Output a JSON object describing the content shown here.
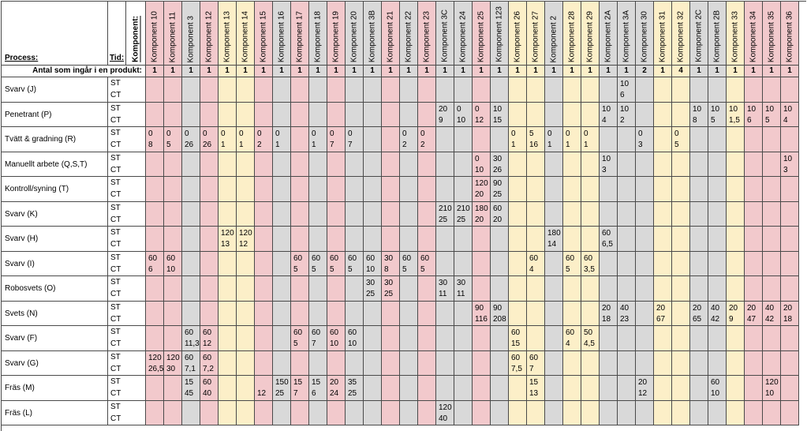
{
  "headers": {
    "process": "Process:",
    "tid": "Tid:",
    "komponent": "Komponent:",
    "antal": "Antal som ingår i en produkt:"
  },
  "st_label": "ST",
  "ct_label": "CT",
  "colors": {
    "pink": "#f2c9cc",
    "yellow": "#fcefc8",
    "gray": "#d9d9d9",
    "white": "#ffffff"
  },
  "components": [
    {
      "name": "Komponent 10",
      "count": "1",
      "color": "pink"
    },
    {
      "name": "Komponent 11",
      "count": "1",
      "color": "pink"
    },
    {
      "name": "Komponent 3",
      "count": "1",
      "color": "gray"
    },
    {
      "name": "Komponent 12",
      "count": "1",
      "color": "pink"
    },
    {
      "name": "Komponent 13",
      "count": "1",
      "color": "yellow"
    },
    {
      "name": "Komponent 14",
      "count": "1",
      "color": "yellow"
    },
    {
      "name": "Komponent 15",
      "count": "1",
      "color": "pink"
    },
    {
      "name": "Komponent 16",
      "count": "1",
      "color": "gray"
    },
    {
      "name": "Komponent 17",
      "count": "1",
      "color": "pink"
    },
    {
      "name": "Komponent 18",
      "count": "1",
      "color": "gray"
    },
    {
      "name": "Komponent 19",
      "count": "1",
      "color": "pink"
    },
    {
      "name": "Komponent 20",
      "count": "1",
      "color": "gray"
    },
    {
      "name": "Komponent 3B",
      "count": "1",
      "color": "gray"
    },
    {
      "name": "Komponent 21",
      "count": "1",
      "color": "pink"
    },
    {
      "name": "Komponent 22",
      "count": "1",
      "color": "gray"
    },
    {
      "name": "Komponent 23",
      "count": "1",
      "color": "pink"
    },
    {
      "name": "Komponent 3C",
      "count": "1",
      "color": "gray"
    },
    {
      "name": "Komponent 24",
      "count": "1",
      "color": "gray"
    },
    {
      "name": "Komponent 25",
      "count": "1",
      "color": "pink"
    },
    {
      "name": "Komponent 123",
      "count": "1",
      "color": "gray"
    },
    {
      "name": "Komponent 26",
      "count": "1",
      "color": "yellow"
    },
    {
      "name": "Komponent 27",
      "count": "1",
      "color": "yellow"
    },
    {
      "name": "Komponent 2",
      "count": "1",
      "color": "gray"
    },
    {
      "name": "Komponent 28",
      "count": "1",
      "color": "yellow"
    },
    {
      "name": "Komponent 29",
      "count": "1",
      "color": "yellow"
    },
    {
      "name": "Komponent 2A",
      "count": "1",
      "color": "gray"
    },
    {
      "name": "Komponent 3A",
      "count": "1",
      "color": "gray"
    },
    {
      "name": "Komponent 30",
      "count": "2",
      "color": "gray"
    },
    {
      "name": "Komponent 31",
      "count": "1",
      "color": "yellow"
    },
    {
      "name": "Komponent 32",
      "count": "4",
      "color": "yellow"
    },
    {
      "name": "Komponent 2C",
      "count": "1",
      "color": "gray"
    },
    {
      "name": "Komponent 2B",
      "count": "1",
      "color": "gray"
    },
    {
      "name": "Komponent 33",
      "count": "1",
      "color": "yellow"
    },
    {
      "name": "Komponent 34",
      "count": "1",
      "color": "pink"
    },
    {
      "name": "Komponent 35",
      "count": "1",
      "color": "pink"
    },
    {
      "name": "Komponent 36",
      "count": "1",
      "color": "pink"
    }
  ],
  "processes": [
    {
      "name": "Svarv (J)",
      "st": {
        "26": "10"
      },
      "ct": {
        "26": "6"
      }
    },
    {
      "name": "Penetrant (P)",
      "st": {
        "16": "20",
        "17": "0",
        "18": "0",
        "19": "10",
        "25": "10",
        "26": "10",
        "30": "10",
        "31": "10",
        "32": "10",
        "33": "10",
        "34": "10",
        "35": "10"
      },
      "ct": {
        "16": "9",
        "17": "10",
        "18": "12",
        "19": "15",
        "25": "4",
        "26": "2",
        "30": "8",
        "31": "5",
        "32": "1,5",
        "33": "6",
        "34": "5",
        "35": "4"
      }
    },
    {
      "name": "Tvätt & gradning (R)",
      "st": {
        "0": "0",
        "1": "0",
        "2": "0",
        "3": "0",
        "4": "0",
        "5": "0",
        "6": "0",
        "7": "0",
        "9": "0",
        "10": "0",
        "11": "0",
        "14": "0",
        "15": "0",
        "20": "0",
        "21": "5",
        "22": "0",
        "23": "0",
        "24": "0",
        "27": "0",
        "29": "0"
      },
      "ct": {
        "0": "8",
        "1": "5",
        "2": "26",
        "3": "26",
        "4": "1",
        "5": "1",
        "6": "2",
        "7": "1",
        "9": "1",
        "10": "7",
        "11": "7",
        "14": "2",
        "15": "2",
        "20": "1",
        "21": "16",
        "22": "1",
        "23": "1",
        "24": "1",
        "27": "3",
        "29": "5"
      }
    },
    {
      "name": "Manuellt arbete (Q,S,T)",
      "st": {
        "18": "0",
        "19": "30",
        "25": "10",
        "35": "10"
      },
      "ct": {
        "18": "10",
        "19": "26",
        "25": "3",
        "35": "3"
      }
    },
    {
      "name": "Kontroll/syning (T)",
      "st": {
        "18": "120",
        "19": "90"
      },
      "ct": {
        "18": "20",
        "19": "25"
      }
    },
    {
      "name": "Svarv (K)",
      "st": {
        "16": "210",
        "17": "210",
        "18": "180",
        "19": "60"
      },
      "ct": {
        "16": "25",
        "17": "25",
        "18": "20",
        "19": "20"
      }
    },
    {
      "name": "Svarv (H)",
      "st": {
        "4": "120",
        "5": "120",
        "22": "180",
        "25": "60"
      },
      "ct": {
        "4": "13",
        "5": "12",
        "22": "14",
        "25": "6,5"
      }
    },
    {
      "name": "Svarv (I)",
      "st": {
        "0": "60",
        "1": "60",
        "8": "60",
        "9": "60",
        "10": "60",
        "11": "60",
        "12": "60",
        "13": "30",
        "14": "60",
        "15": "60",
        "21": "60",
        "23": "60",
        "24": "60"
      },
      "ct": {
        "0": "6",
        "1": "10",
        "8": "5",
        "9": "5",
        "10": "5",
        "11": "5",
        "12": "10",
        "13": "8",
        "14": "5",
        "15": "5",
        "21": "4",
        "23": "5",
        "24": "3,5"
      }
    },
    {
      "name": "Robosvets (O)",
      "st": {
        "12": "30",
        "13": "30",
        "16": "30",
        "17": "30"
      },
      "ct": {
        "12": "25",
        "13": "25",
        "16": "11",
        "17": "11"
      }
    },
    {
      "name": "Svets (N)",
      "st": {
        "18": "90",
        "19": "90",
        "25": "20",
        "26": "40",
        "28": "20",
        "30": "20",
        "31": "40",
        "32": "20",
        "33": "20",
        "34": "40",
        "35": "20"
      },
      "ct": {
        "18": "116",
        "19": "208",
        "25": "18",
        "26": "23",
        "28": "67",
        "30": "65",
        "31": "42",
        "32": "9",
        "33": "47",
        "34": "42",
        "35": "18"
      }
    },
    {
      "name": "Svarv (F)",
      "st": {
        "2": "60",
        "3": "60",
        "8": "60",
        "9": "60",
        "10": "60",
        "11": "60",
        "20": "60",
        "23": "60",
        "24": "50"
      },
      "ct": {
        "2": "11,3",
        "3": "12",
        "8": "5",
        "9": "7",
        "10": "10",
        "11": "10",
        "20": "15",
        "23": "4",
        "24": "4,5"
      }
    },
    {
      "name": "Svarv (G)",
      "st": {
        "0": "120",
        "1": "120",
        "2": "60",
        "3": "60",
        "20": "60",
        "21": "60"
      },
      "ct": {
        "0": "26,5",
        "1": "30",
        "2": "7,1",
        "3": "7,2",
        "20": "7,5",
        "21": "7"
      }
    },
    {
      "name": "Fräs (M)",
      "st": {
        "2": "15",
        "3": "60",
        "7": "150",
        "8": "15",
        "9": "15",
        "10": "20",
        "11": "35",
        "21": "15",
        "27": "20",
        "31": "60",
        "34": "120"
      },
      "ct": {
        "2": "45",
        "3": "40",
        "6": "12",
        "7": "25",
        "8": "7",
        "9": "6",
        "10": "24",
        "11": "25",
        "21": "13",
        "27": "12",
        "31": "10",
        "34": "10"
      }
    },
    {
      "name": "Fräs (L)",
      "st": {
        "16": "120"
      },
      "ct": {
        "16": "40"
      }
    }
  ]
}
